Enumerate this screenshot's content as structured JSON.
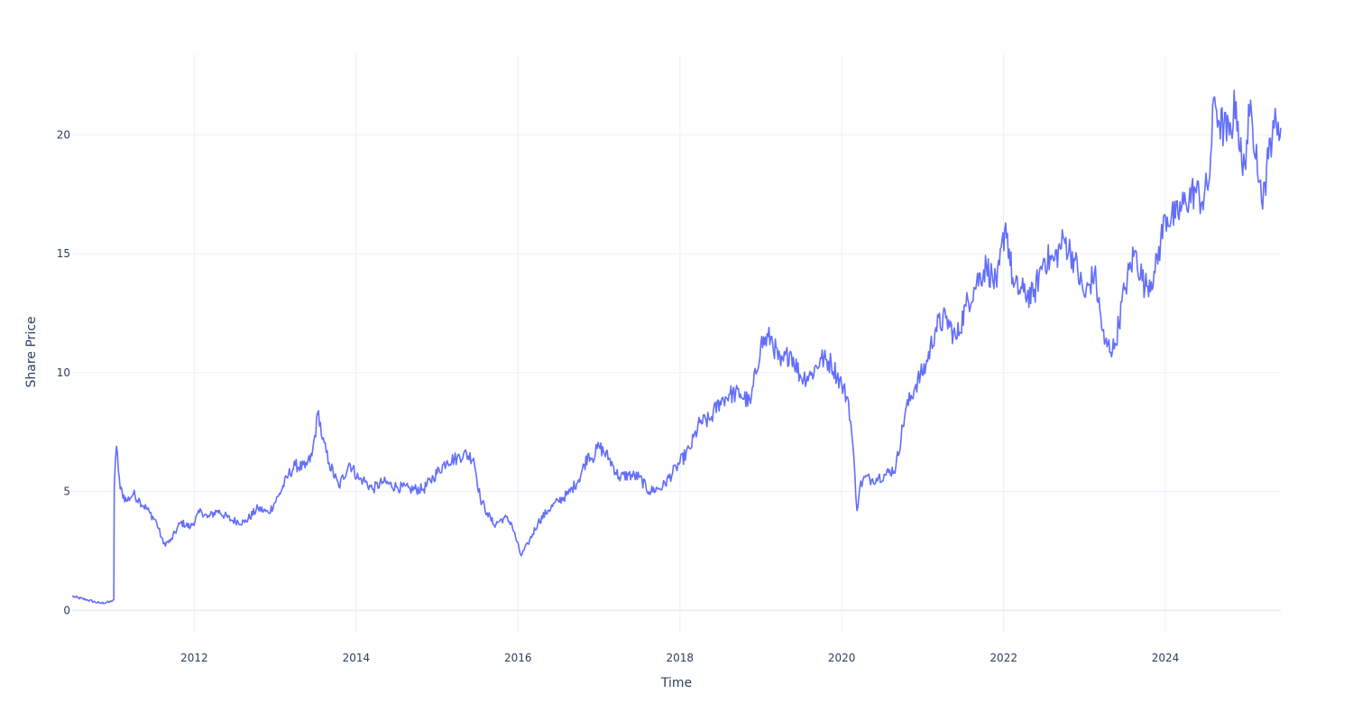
{
  "chart_data": {
    "type": "line",
    "title": "",
    "xlabel": "Time",
    "ylabel": "Share Price",
    "x_ticks": [
      "2012",
      "2014",
      "2016",
      "2018",
      "2020",
      "2022",
      "2024"
    ],
    "y_ticks": [
      "0",
      "5",
      "10",
      "15",
      "20"
    ],
    "xlim": [
      "2010-06-29",
      "2025-06-05"
    ],
    "ylim": [
      -0.9,
      23.4
    ],
    "grid": true,
    "legend": "none",
    "series_color": "#636efa",
    "series": [
      {
        "name": "",
        "x": [
          "2010-06-29",
          "2010-07-15",
          "2010-09-01",
          "2010-11-01",
          "2010-12-15",
          "2011-01-03",
          "2011-01-05",
          "2011-01-15",
          "2011-02-01",
          "2011-03-01",
          "2011-04-01",
          "2011-05-01",
          "2011-06-15",
          "2011-07-15",
          "2011-08-15",
          "2011-09-15",
          "2011-11-01",
          "2011-12-15",
          "2012-02-01",
          "2012-03-01",
          "2012-04-15",
          "2012-06-15",
          "2012-08-15",
          "2012-10-15",
          "2012-12-01",
          "2013-01-15",
          "2013-03-01",
          "2013-04-01",
          "2013-05-15",
          "2013-06-15",
          "2013-07-15",
          "2013-08-01",
          "2013-09-01",
          "2013-10-15",
          "2013-12-01",
          "2014-01-15",
          "2014-02-01",
          "2014-03-15",
          "2014-05-01",
          "2014-07-01",
          "2014-09-01",
          "2014-11-01",
          "2014-12-15",
          "2015-02-15",
          "2015-04-01",
          "2015-05-01",
          "2015-06-15",
          "2015-07-15",
          "2015-08-15",
          "2015-09-15",
          "2015-11-01",
          "2015-12-01",
          "2016-01-15",
          "2016-02-15",
          "2016-04-01",
          "2016-05-15",
          "2016-07-01",
          "2016-08-15",
          "2016-10-01",
          "2016-11-15",
          "2016-12-01",
          "2017-01-01",
          "2017-02-15",
          "2017-04-01",
          "2017-05-15",
          "2017-07-01",
          "2017-08-15",
          "2017-10-15",
          "2017-12-15",
          "2018-02-15",
          "2018-04-01",
          "2018-05-15",
          "2018-07-01",
          "2018-08-15",
          "2018-10-01",
          "2018-11-15",
          "2019-01-01",
          "2019-02-15",
          "2019-04-01",
          "2019-05-15",
          "2019-07-01",
          "2019-08-15",
          "2019-10-01",
          "2019-11-15",
          "2020-01-01",
          "2020-02-01",
          "2020-02-20",
          "2020-03-10",
          "2020-03-23",
          "2020-04-15",
          "2020-05-15",
          "2020-06-15",
          "2020-07-15",
          "2020-09-01",
          "2020-10-15",
          "2020-12-01",
          "2021-01-15",
          "2021-03-01",
          "2021-04-15",
          "2021-06-01",
          "2021-07-15",
          "2021-09-01",
          "2021-10-15",
          "2021-12-01",
          "2022-01-10",
          "2022-02-15",
          "2022-04-01",
          "2022-05-15",
          "2022-07-01",
          "2022-08-15",
          "2022-10-01",
          "2022-11-15",
          "2023-01-01",
          "2023-02-15",
          "2023-04-01",
          "2023-05-15",
          "2023-07-01",
          "2023-08-15",
          "2023-10-01",
          "2023-11-15",
          "2024-01-01",
          "2024-02-15",
          "2024-04-01",
          "2024-05-15",
          "2024-06-15",
          "2024-07-15",
          "2024-08-10",
          "2024-09-01",
          "2024-10-15",
          "2024-11-15",
          "2024-12-15",
          "2025-01-15",
          "2025-02-15",
          "2025-03-10",
          "2025-03-25",
          "2025-04-10",
          "2025-05-01",
          "2025-05-20",
          "2025-06-05"
        ],
        "values": [
          0.6,
          0.55,
          0.45,
          0.3,
          0.35,
          0.45,
          5.2,
          6.9,
          5.1,
          4.6,
          4.9,
          4.6,
          4.1,
          3.7,
          2.8,
          2.9,
          3.7,
          3.5,
          4.2,
          3.9,
          4.2,
          3.8,
          3.7,
          4.3,
          4.1,
          4.8,
          5.7,
          6.1,
          6.0,
          6.5,
          8.4,
          7.2,
          6.2,
          5.2,
          6.2,
          5.5,
          5.5,
          5.1,
          5.4,
          5.2,
          5.1,
          5.1,
          5.6,
          6.3,
          6.4,
          6.6,
          6.4,
          4.7,
          4.1,
          3.6,
          3.9,
          3.7,
          2.3,
          2.8,
          3.7,
          4.2,
          4.6,
          4.9,
          5.5,
          6.6,
          6.4,
          6.9,
          6.4,
          5.6,
          5.7,
          5.6,
          5.0,
          5.2,
          6.0,
          6.8,
          7.9,
          8.0,
          8.8,
          9.1,
          9.1,
          8.7,
          11.2,
          11.5,
          10.3,
          10.9,
          9.8,
          9.9,
          10.6,
          10.4,
          9.5,
          8.8,
          7.0,
          4.2,
          5.2,
          5.6,
          5.5,
          5.6,
          5.7,
          6.0,
          8.4,
          9.5,
          10.3,
          11.9,
          12.3,
          11.4,
          12.8,
          13.8,
          14.5,
          13.6,
          16.3,
          13.6,
          13.4,
          13.2,
          14.8,
          14.7,
          15.6,
          14.8,
          13.2,
          14.2,
          11.2,
          11.0,
          13.5,
          15.1,
          13.6,
          14.2,
          16.6,
          16.5,
          17.2,
          17.7,
          17.2,
          18.0,
          21.6,
          20.5,
          20.0,
          21.4,
          18.3,
          20.8,
          19.6,
          17.2,
          18.0,
          19.0,
          20.6,
          20.0,
          20.3
        ]
      }
    ]
  }
}
